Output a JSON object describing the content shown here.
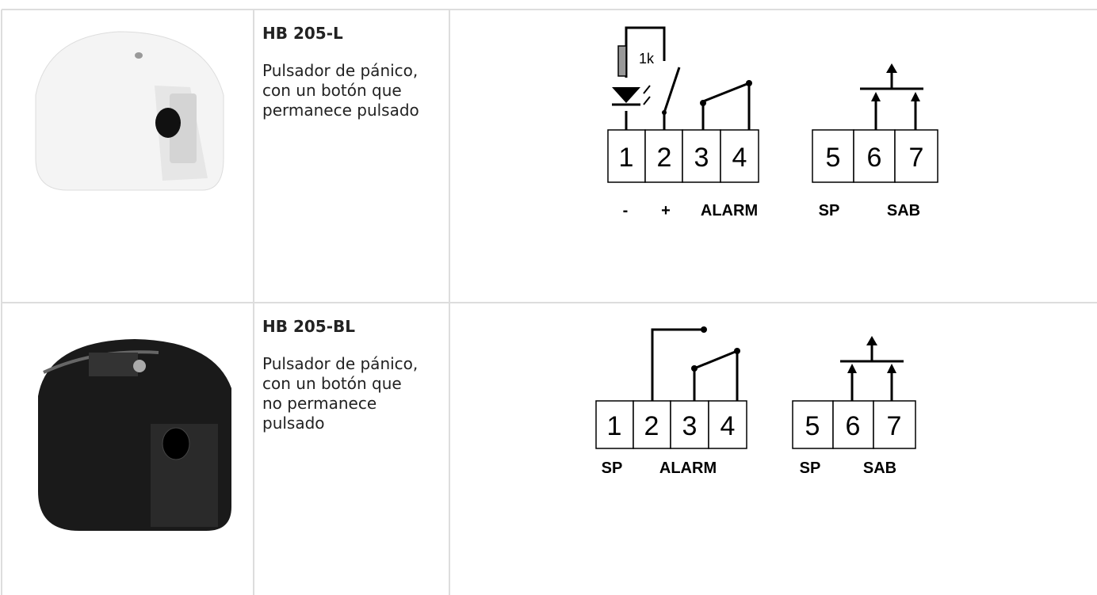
{
  "table": {
    "rows": [
      {
        "name": "HB 205-L",
        "description": "Pulsador de pánico, con un botón que permanece pulsado",
        "diagram": {
          "resistor": "1k",
          "terminals": [
            "1",
            "2",
            "3",
            "4",
            "5",
            "6",
            "7"
          ],
          "labels": [
            "-",
            "+",
            "ALARM",
            "SP",
            "SAB"
          ]
        }
      },
      {
        "name": "HB 205-BL",
        "description": "Pulsador de pánico, con un botón que no permanece pulsado",
        "diagram": {
          "terminals": [
            "1",
            "2",
            "3",
            "4",
            "5",
            "6",
            "7"
          ],
          "labels": [
            "SP",
            "ALARM",
            "SP",
            "SAB"
          ]
        }
      }
    ]
  }
}
